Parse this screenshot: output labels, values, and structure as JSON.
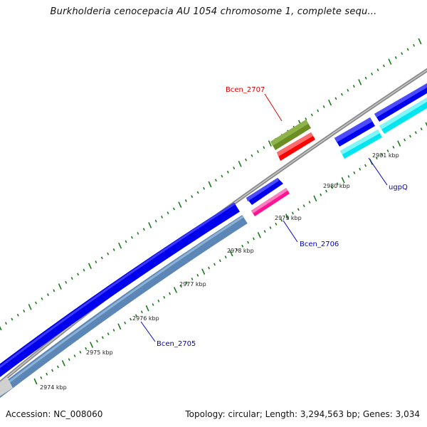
{
  "title": "Burkholderia cenocepacia AU 1054 chromosome 1, complete sequ...",
  "footer": {
    "accession": "Accession: NC_008060",
    "summary": "Topology: circular; Length: 3,294,563 bp; Genes: 3,034"
  },
  "ticks": [
    "2974 kbp",
    "2975 kbp",
    "2976 kbp",
    "2977 kbp",
    "2978 kbp",
    "2979 kbp",
    "2980 kbp",
    "2981 kbp"
  ],
  "genes": [
    {
      "name": "Bcen_2707",
      "color": "#e00000"
    },
    {
      "name": "Bcen_2706",
      "color": "#0000cc"
    },
    {
      "name": "Bcen_2705",
      "color": "#0000cc"
    },
    {
      "name": "ugpQ",
      "color": "#0000cc"
    }
  ],
  "colors": {
    "backbone": "#8a8a8a",
    "cds_forward": "#0000ee",
    "steelblue": "#5b86b5",
    "olive": "#6b8e23",
    "red": "#ff0000",
    "magenta": "#ff1493",
    "cyan": "#00e5ee",
    "tick_green": "#1a7a1a"
  }
}
